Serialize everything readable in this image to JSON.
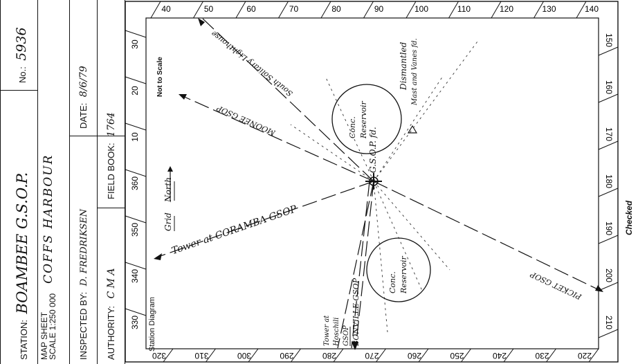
{
  "form": {
    "station_label": "STATION:",
    "station_value": "BOAMBEE G.S.O.P.",
    "no_label": "No.:",
    "no_value": "5936",
    "map_sheet_label_1": "MAP SHEET",
    "map_sheet_label_2": "SCALE 1:250 000",
    "map_sheet_value": "COFFS HARBOUR",
    "inspected_label": "INSPECTED BY:",
    "inspected_value": "D. FREDRIKSEN",
    "date_label": "DATE:",
    "date_value": "8/6/79",
    "authority_label": "AUTHORITY:",
    "authority_value": "C M A",
    "fieldbook_label": "FIELD BOOK:",
    "fieldbook_value": "1764",
    "checked_label": "Checked"
  },
  "diagram": {
    "title": "Station Diagram",
    "not_to_scale": "Not to Scale",
    "grid_north": "Grid  North",
    "grid_north_word_1": "Grid",
    "grid_north_word_2": "North",
    "labels": {
      "corramba": "Tower at CORAMBA GSOP",
      "moonee": "MOONEE GSOP",
      "south_solitary": "South Solitary Lighthouse",
      "bonville": "BONVILLE GSOP",
      "hoschili": "Tower at Hoschili GSOP",
      "picket": "PICKET GSOP",
      "reservoir_upper": "Conc. Reservoir",
      "reservoir_lower": "Conc. Reservoir",
      "gsop_fd": "G.S.O.P. fd.",
      "dismantled": "Dismantled",
      "mast_vanes": "Mast and Vanes fd."
    },
    "top_ticks": [
      "40",
      "50",
      "60",
      "70",
      "80",
      "90",
      "100",
      "110",
      "120",
      "130",
      "140"
    ],
    "bottom_ticks": [
      "320",
      "310",
      "300",
      "290",
      "280",
      "270",
      "260",
      "250",
      "240",
      "230",
      "220"
    ],
    "left_ticks": [
      "30",
      "20",
      "10",
      "360",
      "350",
      "340",
      "330"
    ],
    "right_ticks": [
      "150",
      "160",
      "170",
      "180",
      "190",
      "200",
      "210"
    ]
  }
}
